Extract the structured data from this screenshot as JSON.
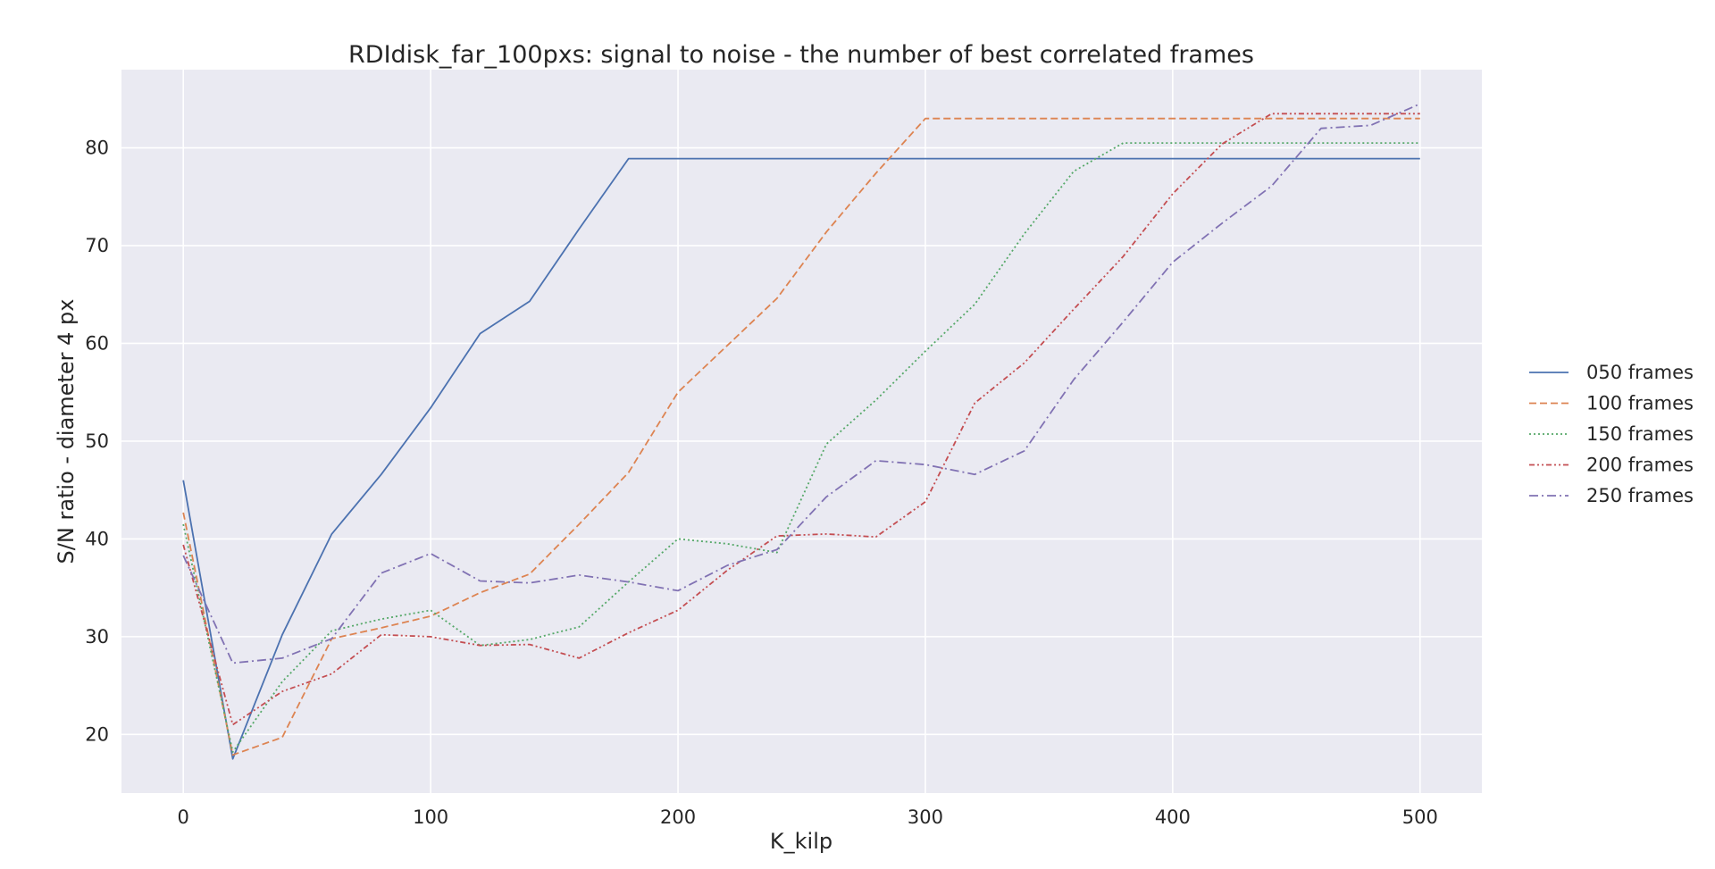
{
  "chart_data": {
    "type": "line",
    "title": "RDIdisk_far_100pxs: signal to noise - the number of best correlated frames",
    "xlabel": "K_kilp",
    "ylabel": "S/N ratio - diameter 4 px",
    "xlim": [
      -25,
      525
    ],
    "ylim": [
      14,
      88
    ],
    "xticks": [
      0,
      100,
      200,
      300,
      400,
      500
    ],
    "yticks": [
      20,
      30,
      40,
      50,
      60,
      70,
      80
    ],
    "grid": true,
    "legend_position": "right",
    "background_color": "#EAEAF2",
    "x": [
      0,
      20,
      40,
      60,
      80,
      100,
      120,
      140,
      160,
      180,
      200,
      220,
      240,
      260,
      280,
      300,
      320,
      340,
      360,
      380,
      400,
      420,
      440,
      460,
      480,
      500
    ],
    "series": [
      {
        "name": "050 frames",
        "color": "#4C72B0",
        "dash": "solid",
        "values": [
          46.0,
          17.5,
          30.2,
          40.5,
          46.6,
          53.4,
          61.0,
          64.3,
          71.7,
          78.9,
          78.9,
          78.9,
          78.9,
          78.9,
          78.9,
          78.9,
          78.9,
          78.9,
          78.9,
          78.9,
          78.9,
          78.9,
          78.9,
          78.9,
          78.9,
          78.9
        ]
      },
      {
        "name": "100 frames",
        "color": "#DD8452",
        "dash": "dashed",
        "values": [
          42.7,
          17.9,
          19.7,
          29.8,
          30.9,
          32.1,
          34.5,
          36.4,
          41.5,
          46.8,
          55.0,
          59.8,
          64.6,
          71.4,
          77.4,
          83.0,
          83.0,
          83.0,
          83.0,
          83.0,
          83.0,
          83.0,
          83.0,
          83.0,
          83.0,
          83.0
        ]
      },
      {
        "name": "150 frames",
        "color": "#55A868",
        "dash": "dotted",
        "values": [
          41.5,
          18.2,
          25.4,
          30.6,
          31.8,
          32.7,
          29.1,
          29.7,
          31.0,
          35.6,
          40.0,
          39.5,
          38.6,
          49.7,
          54.2,
          59.2,
          64.0,
          71.2,
          77.6,
          80.5,
          80.5,
          80.5,
          80.5,
          80.5,
          80.5,
          80.5
        ]
      },
      {
        "name": "200 frames",
        "color": "#C44E52",
        "dash": "dashdotdot",
        "values": [
          39.4,
          21.0,
          24.4,
          26.2,
          30.2,
          30.0,
          29.1,
          29.2,
          27.8,
          30.4,
          32.7,
          36.8,
          40.3,
          40.5,
          40.2,
          43.8,
          53.9,
          58.0,
          63.5,
          68.9,
          75.3,
          80.4,
          83.5,
          83.5,
          83.5,
          83.5
        ]
      },
      {
        "name": "250 frames",
        "color": "#8172B3",
        "dash": "dashdot",
        "values": [
          38.3,
          27.3,
          27.8,
          29.8,
          36.5,
          38.5,
          35.7,
          35.5,
          36.3,
          35.6,
          34.7,
          37.3,
          38.9,
          44.3,
          48.0,
          47.6,
          46.6,
          49.0,
          56.3,
          62.2,
          68.3,
          72.3,
          76.1,
          82.0,
          82.3,
          84.5
        ]
      }
    ]
  }
}
